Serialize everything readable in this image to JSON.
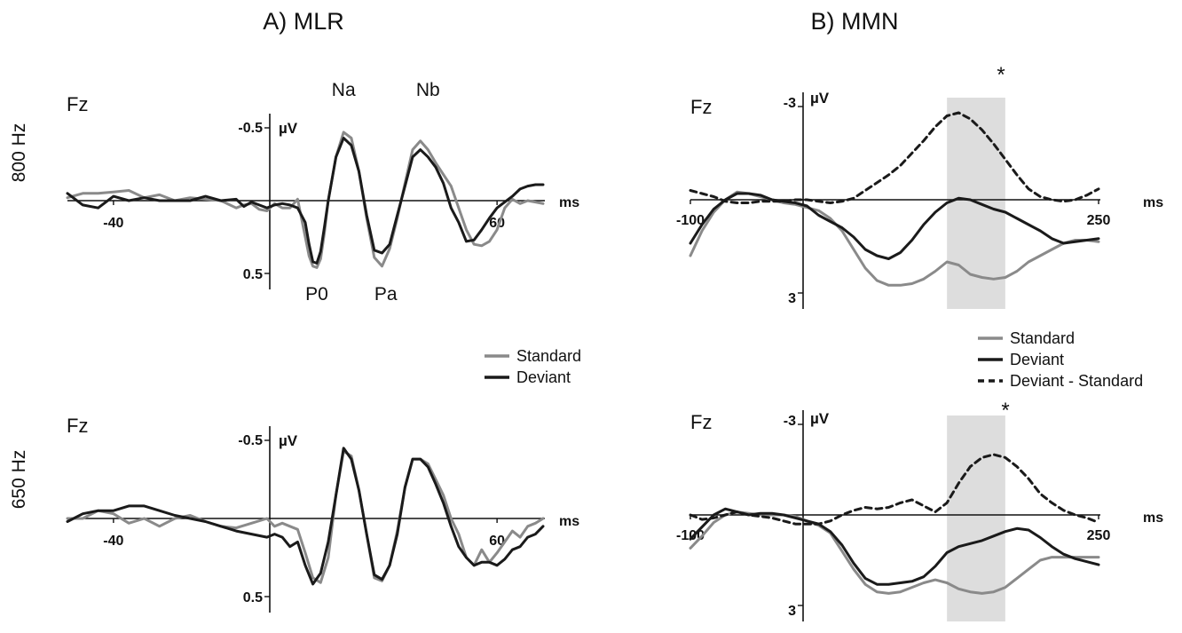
{
  "panels": {
    "mlr_title": "A) MLR",
    "mmn_title": "B) MMN"
  },
  "row_labels": {
    "top": "800 Hz",
    "bottom": "650 Hz"
  },
  "legends": {
    "mlr": [
      {
        "label": "Standard",
        "color": "#8a8a8a",
        "dash": false
      },
      {
        "label": "Deviant",
        "color": "#1a1a1a",
        "dash": false
      }
    ],
    "mmn": [
      {
        "label": "Standard",
        "color": "#8a8a8a",
        "dash": false
      },
      {
        "label": "Deviant",
        "color": "#1a1a1a",
        "dash": false
      },
      {
        "label": "Deviant - Standard",
        "color": "#1a1a1a",
        "dash": true
      }
    ]
  },
  "chart_data": [
    {
      "id": "mlr-800",
      "type": "line",
      "channel": "Fz",
      "xlabel": "ms",
      "ylabel": "µV",
      "xlim": [
        -52,
        72
      ],
      "ylim": [
        0.5,
        -0.5
      ],
      "x_ticks": [
        -40,
        60
      ],
      "y_ticks": [
        -0.5,
        0.5
      ],
      "y_tick_labels": [
        "-0.5",
        "0.5"
      ],
      "peaks": [
        {
          "label": "Na",
          "x": 20,
          "y": -0.55
        },
        {
          "label": "Nb",
          "x": 42,
          "y": -0.55
        },
        {
          "label": "P0",
          "x": 13,
          "y": 0.5
        },
        {
          "label": "Pa",
          "x": 31,
          "y": 0.5
        }
      ],
      "series": [
        {
          "name": "Standard",
          "color": "#8a8a8a",
          "dash": false,
          "x": [
            -52,
            -48,
            -44,
            -40,
            -36,
            -32,
            -28,
            -24,
            -20,
            -16,
            -12,
            -8,
            -6,
            -4,
            -2,
            0,
            2,
            4,
            6,
            8,
            10,
            11,
            12,
            13,
            14,
            15,
            16,
            18,
            20,
            22,
            24,
            26,
            28,
            30,
            32,
            34,
            36,
            38,
            40,
            42,
            44,
            46,
            48,
            50,
            52,
            54,
            56,
            58,
            60,
            62,
            64,
            66,
            68,
            70,
            72
          ],
          "y": [
            -0.02,
            -0.05,
            -0.05,
            -0.06,
            -0.07,
            -0.02,
            -0.04,
            0.0,
            -0.02,
            -0.01,
            0.0,
            0.05,
            0.03,
            0.02,
            0.06,
            0.07,
            0.02,
            0.05,
            0.05,
            -0.01,
            0.25,
            0.38,
            0.45,
            0.46,
            0.4,
            0.22,
            0.0,
            -0.3,
            -0.47,
            -0.43,
            -0.2,
            0.12,
            0.39,
            0.45,
            0.33,
            0.12,
            -0.12,
            -0.35,
            -0.41,
            -0.35,
            -0.26,
            -0.18,
            -0.1,
            0.05,
            0.2,
            0.3,
            0.31,
            0.28,
            0.2,
            0.05,
            -0.01,
            0.02,
            0.0,
            0.01,
            0.02
          ]
        },
        {
          "name": "Deviant",
          "color": "#1a1a1a",
          "dash": false,
          "x": [
            -52,
            -48,
            -44,
            -40,
            -36,
            -32,
            -28,
            -24,
            -20,
            -16,
            -12,
            -8,
            -6,
            -4,
            -2,
            0,
            2,
            4,
            6,
            8,
            10,
            11,
            12,
            13,
            14,
            15,
            16,
            18,
            20,
            22,
            24,
            26,
            28,
            30,
            32,
            34,
            36,
            38,
            40,
            42,
            44,
            46,
            48,
            50,
            52,
            54,
            56,
            58,
            60,
            62,
            64,
            66,
            68,
            70,
            72
          ],
          "y": [
            -0.05,
            0.03,
            0.05,
            -0.03,
            0.0,
            -0.02,
            0.0,
            0.0,
            0.0,
            -0.03,
            0.0,
            -0.01,
            0.04,
            0.01,
            0.03,
            0.05,
            0.03,
            0.02,
            0.03,
            0.05,
            0.15,
            0.3,
            0.42,
            0.43,
            0.35,
            0.18,
            0.0,
            -0.3,
            -0.43,
            -0.38,
            -0.2,
            0.1,
            0.34,
            0.36,
            0.3,
            0.1,
            -0.1,
            -0.3,
            -0.35,
            -0.3,
            -0.23,
            -0.12,
            0.05,
            0.15,
            0.28,
            0.27,
            0.2,
            0.12,
            0.05,
            0.01,
            -0.03,
            -0.08,
            -0.1,
            -0.11,
            -0.11
          ]
        }
      ]
    },
    {
      "id": "mlr-650",
      "type": "line",
      "channel": "Fz",
      "xlabel": "ms",
      "ylabel": "µV",
      "xlim": [
        -52,
        72
      ],
      "ylim": [
        0.5,
        -0.5
      ],
      "x_ticks": [
        -40,
        60
      ],
      "y_ticks": [
        -0.5,
        0.5
      ],
      "y_tick_labels": [
        "-0.5",
        "0.5"
      ],
      "series": [
        {
          "name": "Standard",
          "color": "#8a8a8a",
          "dash": false,
          "x": [
            -52,
            -48,
            -44,
            -40,
            -36,
            -32,
            -28,
            -24,
            -20,
            -16,
            -12,
            -8,
            -4,
            0,
            2,
            4,
            6,
            8,
            10,
            12,
            14,
            16,
            18,
            20,
            22,
            24,
            26,
            28,
            30,
            32,
            34,
            36,
            38,
            40,
            42,
            44,
            46,
            48,
            50,
            52,
            54,
            56,
            58,
            60,
            62,
            64,
            66,
            68,
            70,
            72
          ],
          "y": [
            0.0,
            0.0,
            -0.05,
            -0.03,
            0.03,
            0.0,
            0.05,
            0.0,
            -0.02,
            0.02,
            0.05,
            0.06,
            0.03,
            0.0,
            0.05,
            0.03,
            0.05,
            0.07,
            0.22,
            0.38,
            0.41,
            0.25,
            -0.15,
            -0.43,
            -0.4,
            -0.18,
            0.1,
            0.38,
            0.4,
            0.3,
            0.08,
            -0.2,
            -0.38,
            -0.38,
            -0.35,
            -0.25,
            -0.15,
            0.0,
            0.1,
            0.25,
            0.3,
            0.2,
            0.28,
            0.22,
            0.15,
            0.08,
            0.12,
            0.05,
            0.03,
            0.0
          ]
        },
        {
          "name": "Deviant",
          "color": "#1a1a1a",
          "dash": false,
          "x": [
            -52,
            -48,
            -44,
            -40,
            -36,
            -32,
            -28,
            -24,
            -20,
            -16,
            -12,
            -8,
            -4,
            0,
            2,
            4,
            6,
            8,
            10,
            12,
            14,
            16,
            18,
            20,
            22,
            24,
            26,
            28,
            30,
            32,
            34,
            36,
            38,
            40,
            42,
            44,
            46,
            48,
            50,
            52,
            54,
            56,
            58,
            60,
            62,
            64,
            66,
            68,
            70,
            72
          ],
          "y": [
            0.02,
            -0.03,
            -0.05,
            -0.05,
            -0.08,
            -0.08,
            -0.05,
            -0.02,
            0.0,
            0.02,
            0.05,
            0.08,
            0.1,
            0.12,
            0.1,
            0.12,
            0.18,
            0.15,
            0.3,
            0.42,
            0.35,
            0.15,
            -0.15,
            -0.45,
            -0.38,
            -0.18,
            0.1,
            0.36,
            0.39,
            0.3,
            0.1,
            -0.2,
            -0.38,
            -0.38,
            -0.33,
            -0.22,
            -0.1,
            0.05,
            0.18,
            0.25,
            0.3,
            0.28,
            0.28,
            0.3,
            0.26,
            0.2,
            0.18,
            0.12,
            0.1,
            0.05
          ]
        }
      ]
    },
    {
      "id": "mmn-800",
      "type": "line",
      "channel": "Fz",
      "xlabel": "ms",
      "ylabel": "µV",
      "xlim": [
        -100,
        250
      ],
      "ylim": [
        3,
        -3
      ],
      "x_ticks": [
        -100,
        250
      ],
      "y_ticks": [
        -3,
        3
      ],
      "y_tick_labels": [
        "-3",
        "3"
      ],
      "shaded_window": [
        120,
        170
      ],
      "significance_marker": "*",
      "series": [
        {
          "name": "Standard",
          "color": "#8a8a8a",
          "dash": false,
          "x": [
            -100,
            -90,
            -80,
            -70,
            -60,
            -50,
            -40,
            -30,
            -20,
            -10,
            0,
            10,
            20,
            30,
            40,
            50,
            60,
            70,
            80,
            90,
            100,
            110,
            120,
            130,
            140,
            150,
            160,
            170,
            180,
            190,
            200,
            210,
            220,
            230,
            240,
            250
          ],
          "y": [
            1.8,
            1.0,
            0.4,
            0.0,
            -0.25,
            -0.2,
            -0.1,
            0.0,
            0.1,
            0.15,
            0.25,
            0.35,
            0.6,
            1.0,
            1.6,
            2.2,
            2.6,
            2.75,
            2.75,
            2.7,
            2.55,
            2.3,
            2.0,
            2.1,
            2.4,
            2.5,
            2.55,
            2.5,
            2.3,
            2.0,
            1.8,
            1.6,
            1.4,
            1.3,
            1.3,
            1.35
          ]
        },
        {
          "name": "Deviant",
          "color": "#1a1a1a",
          "dash": false,
          "x": [
            -100,
            -90,
            -80,
            -70,
            -60,
            -50,
            -40,
            -30,
            -20,
            -10,
            0,
            10,
            20,
            30,
            40,
            50,
            60,
            70,
            80,
            90,
            100,
            110,
            120,
            130,
            140,
            150,
            160,
            170,
            180,
            190,
            200,
            210,
            220,
            230,
            240,
            250
          ],
          "y": [
            1.4,
            0.8,
            0.3,
            0.0,
            -0.2,
            -0.2,
            -0.15,
            0.0,
            0.05,
            0.1,
            0.2,
            0.5,
            0.7,
            0.9,
            1.2,
            1.6,
            1.8,
            1.9,
            1.7,
            1.3,
            0.8,
            0.4,
            0.1,
            -0.05,
            0.0,
            0.15,
            0.3,
            0.4,
            0.6,
            0.8,
            1.0,
            1.25,
            1.4,
            1.35,
            1.3,
            1.25
          ]
        },
        {
          "name": "Deviant - Standard",
          "color": "#1a1a1a",
          "dash": true,
          "x": [
            -100,
            -90,
            -80,
            -70,
            -60,
            -50,
            -40,
            -30,
            -20,
            -10,
            0,
            10,
            20,
            30,
            40,
            50,
            60,
            70,
            80,
            90,
            100,
            110,
            120,
            130,
            140,
            150,
            160,
            170,
            180,
            190,
            200,
            210,
            220,
            230,
            240,
            250
          ],
          "y": [
            -0.3,
            -0.2,
            -0.1,
            0.05,
            0.1,
            0.1,
            0.05,
            0.05,
            0.05,
            0.0,
            0.0,
            0.05,
            0.1,
            0.05,
            -0.05,
            -0.3,
            -0.55,
            -0.8,
            -1.1,
            -1.5,
            -1.9,
            -2.35,
            -2.7,
            -2.8,
            -2.6,
            -2.25,
            -1.8,
            -1.3,
            -0.8,
            -0.35,
            -0.1,
            0.0,
            0.05,
            0.0,
            -0.15,
            -0.35
          ]
        }
      ]
    },
    {
      "id": "mmn-650",
      "type": "line",
      "channel": "Fz",
      "xlabel": "ms",
      "ylabel": "µV",
      "xlim": [
        -100,
        250
      ],
      "ylim": [
        3,
        -3
      ],
      "x_ticks": [
        -100,
        250
      ],
      "y_ticks": [
        -3,
        3
      ],
      "y_tick_labels": [
        "-3",
        "3"
      ],
      "shaded_window": [
        120,
        170
      ],
      "significance_marker": "*",
      "series": [
        {
          "name": "Standard",
          "color": "#8a8a8a",
          "dash": false,
          "x": [
            -100,
            -90,
            -80,
            -70,
            -60,
            -50,
            -40,
            -30,
            -20,
            -10,
            0,
            10,
            20,
            30,
            40,
            50,
            60,
            70,
            80,
            90,
            100,
            110,
            120,
            130,
            140,
            150,
            160,
            170,
            180,
            190,
            200,
            210,
            220,
            230,
            240,
            250
          ],
          "y": [
            1.1,
            0.7,
            0.25,
            0.0,
            -0.1,
            -0.05,
            0.0,
            0.0,
            0.0,
            0.05,
            0.2,
            0.35,
            0.6,
            1.2,
            1.8,
            2.3,
            2.55,
            2.6,
            2.55,
            2.4,
            2.25,
            2.15,
            2.25,
            2.45,
            2.55,
            2.6,
            2.55,
            2.4,
            2.1,
            1.8,
            1.5,
            1.4,
            1.4,
            1.4,
            1.4,
            1.4
          ]
        },
        {
          "name": "Deviant",
          "color": "#1a1a1a",
          "dash": false,
          "x": [
            -100,
            -90,
            -80,
            -70,
            -60,
            -50,
            -40,
            -30,
            -20,
            -10,
            0,
            10,
            20,
            30,
            40,
            50,
            60,
            70,
            80,
            90,
            100,
            110,
            120,
            130,
            140,
            150,
            160,
            170,
            180,
            190,
            200,
            210,
            220,
            230,
            240,
            250
          ],
          "y": [
            0.8,
            0.4,
            0.0,
            -0.2,
            -0.1,
            0.0,
            -0.05,
            -0.05,
            0.0,
            0.1,
            0.2,
            0.3,
            0.55,
            1.0,
            1.6,
            2.1,
            2.3,
            2.3,
            2.25,
            2.2,
            2.05,
            1.7,
            1.25,
            1.05,
            0.95,
            0.85,
            0.7,
            0.55,
            0.45,
            0.5,
            0.75,
            1.05,
            1.3,
            1.45,
            1.55,
            1.65
          ]
        },
        {
          "name": "Deviant - Standard",
          "color": "#1a1a1a",
          "dash": true,
          "x": [
            -100,
            -90,
            -80,
            -70,
            -60,
            -50,
            -40,
            -30,
            -20,
            -10,
            0,
            10,
            20,
            30,
            40,
            50,
            60,
            70,
            80,
            90,
            100,
            110,
            120,
            130,
            140,
            150,
            160,
            170,
            180,
            190,
            200,
            210,
            220,
            230,
            240,
            250
          ],
          "y": [
            0.0,
            0.15,
            0.1,
            0.0,
            -0.1,
            0.0,
            0.05,
            0.1,
            0.2,
            0.3,
            0.3,
            0.3,
            0.2,
            0.0,
            -0.15,
            -0.25,
            -0.2,
            -0.25,
            -0.4,
            -0.5,
            -0.3,
            -0.1,
            -0.4,
            -1.05,
            -1.6,
            -1.9,
            -2.0,
            -1.9,
            -1.6,
            -1.2,
            -0.7,
            -0.4,
            -0.15,
            0.0,
            0.1,
            0.25
          ]
        }
      ]
    }
  ]
}
